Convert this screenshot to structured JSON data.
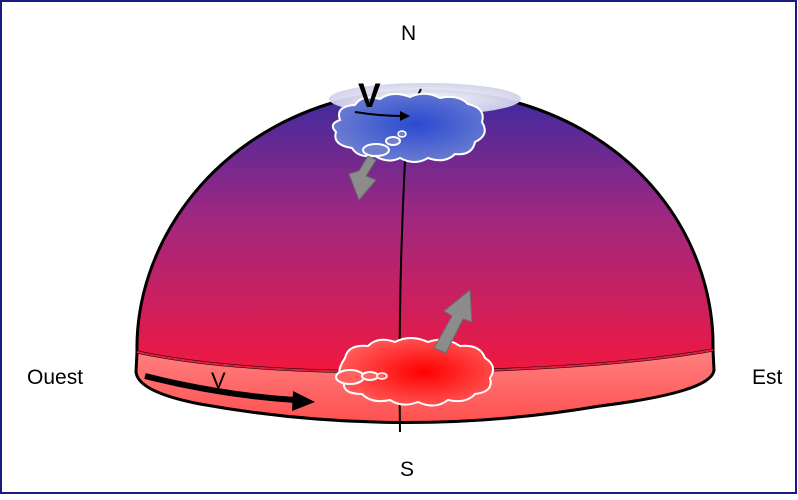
{
  "labels": {
    "north": "N",
    "south": "S",
    "west": "Ouest",
    "east": "Est",
    "velocity_top": "V",
    "velocity_bottom": "V"
  },
  "colors": {
    "frame": "#1a1a80",
    "dome_top": "#3a2aa0",
    "dome_mid": "#a02880",
    "dome_bottom": "#f01840",
    "band": "#ff6a6a",
    "cloud_top": "#4a5fc0",
    "cloud_bottom": "#ff3b3b",
    "motion_arrow": "#8c8c8c"
  }
}
